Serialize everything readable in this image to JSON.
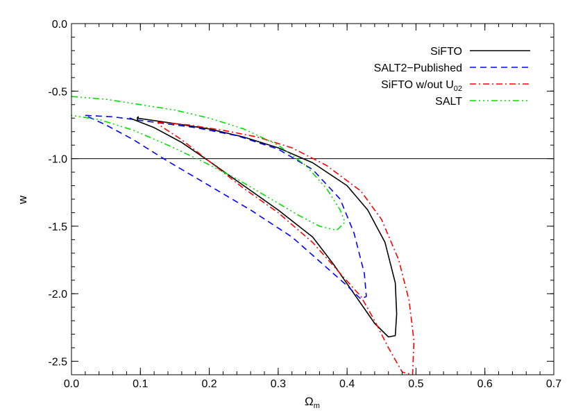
{
  "chart_data": {
    "type": "line",
    "title": "",
    "xlabel": "Ω",
    "xlabel_sub": "m",
    "ylabel": "w",
    "xlim": [
      0.0,
      0.7
    ],
    "ylim": [
      -2.6,
      0.0
    ],
    "x_ticks": [
      0.0,
      0.1,
      0.2,
      0.3,
      0.4,
      0.5,
      0.6,
      0.7
    ],
    "x_tick_labels": [
      "0.0",
      "0.1",
      "0.2",
      "0.3",
      "0.4",
      "0.5",
      "0.6",
      "0.7"
    ],
    "y_ticks": [
      0.0,
      -0.5,
      -1.0,
      -1.5,
      -2.0,
      -2.5
    ],
    "y_tick_labels": [
      "0.0",
      "-0.5",
      "-1.0",
      "-1.5",
      "-2.0",
      "-2.5"
    ],
    "grid": false,
    "legend_position": "top-right",
    "reference_line": {
      "y": -1.0,
      "color": "#000000"
    },
    "series": [
      {
        "name": "SiFTO",
        "legend_sub": "",
        "color": "#000000",
        "dash": "solid",
        "points": [
          [
            0.095,
            -0.7
          ],
          [
            0.15,
            -0.74
          ],
          [
            0.2,
            -0.78
          ],
          [
            0.25,
            -0.84
          ],
          [
            0.3,
            -0.92
          ],
          [
            0.35,
            -1.03
          ],
          [
            0.4,
            -1.2
          ],
          [
            0.43,
            -1.38
          ],
          [
            0.455,
            -1.62
          ],
          [
            0.47,
            -1.92
          ],
          [
            0.472,
            -2.15
          ],
          [
            0.47,
            -2.31
          ],
          [
            0.46,
            -2.32
          ],
          [
            0.44,
            -2.22
          ],
          [
            0.41,
            -2.0
          ],
          [
            0.38,
            -1.78
          ],
          [
            0.35,
            -1.58
          ],
          [
            0.3,
            -1.38
          ],
          [
            0.25,
            -1.2
          ],
          [
            0.2,
            -1.02
          ],
          [
            0.16,
            -0.88
          ],
          [
            0.12,
            -0.77
          ],
          [
            0.09,
            -0.71
          ],
          [
            0.085,
            -0.7
          ],
          [
            0.095,
            -0.72
          ],
          [
            0.097,
            -0.69
          ],
          [
            0.095,
            -0.7
          ]
        ]
      },
      {
        "name": "SALT2−Published",
        "legend_sub": "",
        "color": "#0000ff",
        "dash": "9,6",
        "points": [
          [
            0.02,
            -0.68
          ],
          [
            0.06,
            -0.69
          ],
          [
            0.12,
            -0.73
          ],
          [
            0.18,
            -0.77
          ],
          [
            0.24,
            -0.83
          ],
          [
            0.3,
            -0.93
          ],
          [
            0.35,
            -1.08
          ],
          [
            0.39,
            -1.3
          ],
          [
            0.41,
            -1.55
          ],
          [
            0.425,
            -1.85
          ],
          [
            0.428,
            -2.02
          ],
          [
            0.42,
            -2.04
          ],
          [
            0.4,
            -1.94
          ],
          [
            0.36,
            -1.76
          ],
          [
            0.32,
            -1.58
          ],
          [
            0.26,
            -1.38
          ],
          [
            0.2,
            -1.2
          ],
          [
            0.14,
            -1.02
          ],
          [
            0.09,
            -0.86
          ],
          [
            0.05,
            -0.75
          ],
          [
            0.02,
            -0.68
          ]
        ]
      },
      {
        "name": "SiFTO w/out U",
        "legend_sub": "02",
        "color": "#ff0000",
        "dash": "9,4,2,4",
        "points": [
          [
            0.125,
            -0.73
          ],
          [
            0.17,
            -0.75
          ],
          [
            0.22,
            -0.79
          ],
          [
            0.27,
            -0.84
          ],
          [
            0.32,
            -0.92
          ],
          [
            0.37,
            -1.05
          ],
          [
            0.42,
            -1.24
          ],
          [
            0.45,
            -1.45
          ],
          [
            0.475,
            -1.75
          ],
          [
            0.49,
            -2.05
          ],
          [
            0.497,
            -2.35
          ],
          [
            0.495,
            -2.6
          ],
          [
            0.48,
            -2.58
          ],
          [
            0.46,
            -2.4
          ],
          [
            0.44,
            -2.2
          ],
          [
            0.42,
            -2.02
          ],
          [
            0.39,
            -1.85
          ],
          [
            0.35,
            -1.62
          ],
          [
            0.3,
            -1.4
          ],
          [
            0.25,
            -1.22
          ],
          [
            0.2,
            -1.02
          ],
          [
            0.16,
            -0.86
          ],
          [
            0.13,
            -0.76
          ],
          [
            0.125,
            -0.73
          ]
        ]
      },
      {
        "name": "SALT",
        "legend_sub": "",
        "color": "#00dd00",
        "dash": "9,4,2,4,2,4,2,4",
        "points": [
          [
            0.0,
            -0.54
          ],
          [
            0.05,
            -0.56
          ],
          [
            0.1,
            -0.6
          ],
          [
            0.15,
            -0.64
          ],
          [
            0.2,
            -0.7
          ],
          [
            0.25,
            -0.78
          ],
          [
            0.3,
            -0.9
          ],
          [
            0.34,
            -1.05
          ],
          [
            0.37,
            -1.22
          ],
          [
            0.39,
            -1.38
          ],
          [
            0.397,
            -1.47
          ],
          [
            0.385,
            -1.53
          ],
          [
            0.36,
            -1.5
          ],
          [
            0.33,
            -1.42
          ],
          [
            0.29,
            -1.3
          ],
          [
            0.24,
            -1.15
          ],
          [
            0.19,
            -1.02
          ],
          [
            0.14,
            -0.9
          ],
          [
            0.09,
            -0.79
          ],
          [
            0.04,
            -0.71
          ],
          [
            0.0,
            -0.68
          ]
        ]
      }
    ]
  }
}
